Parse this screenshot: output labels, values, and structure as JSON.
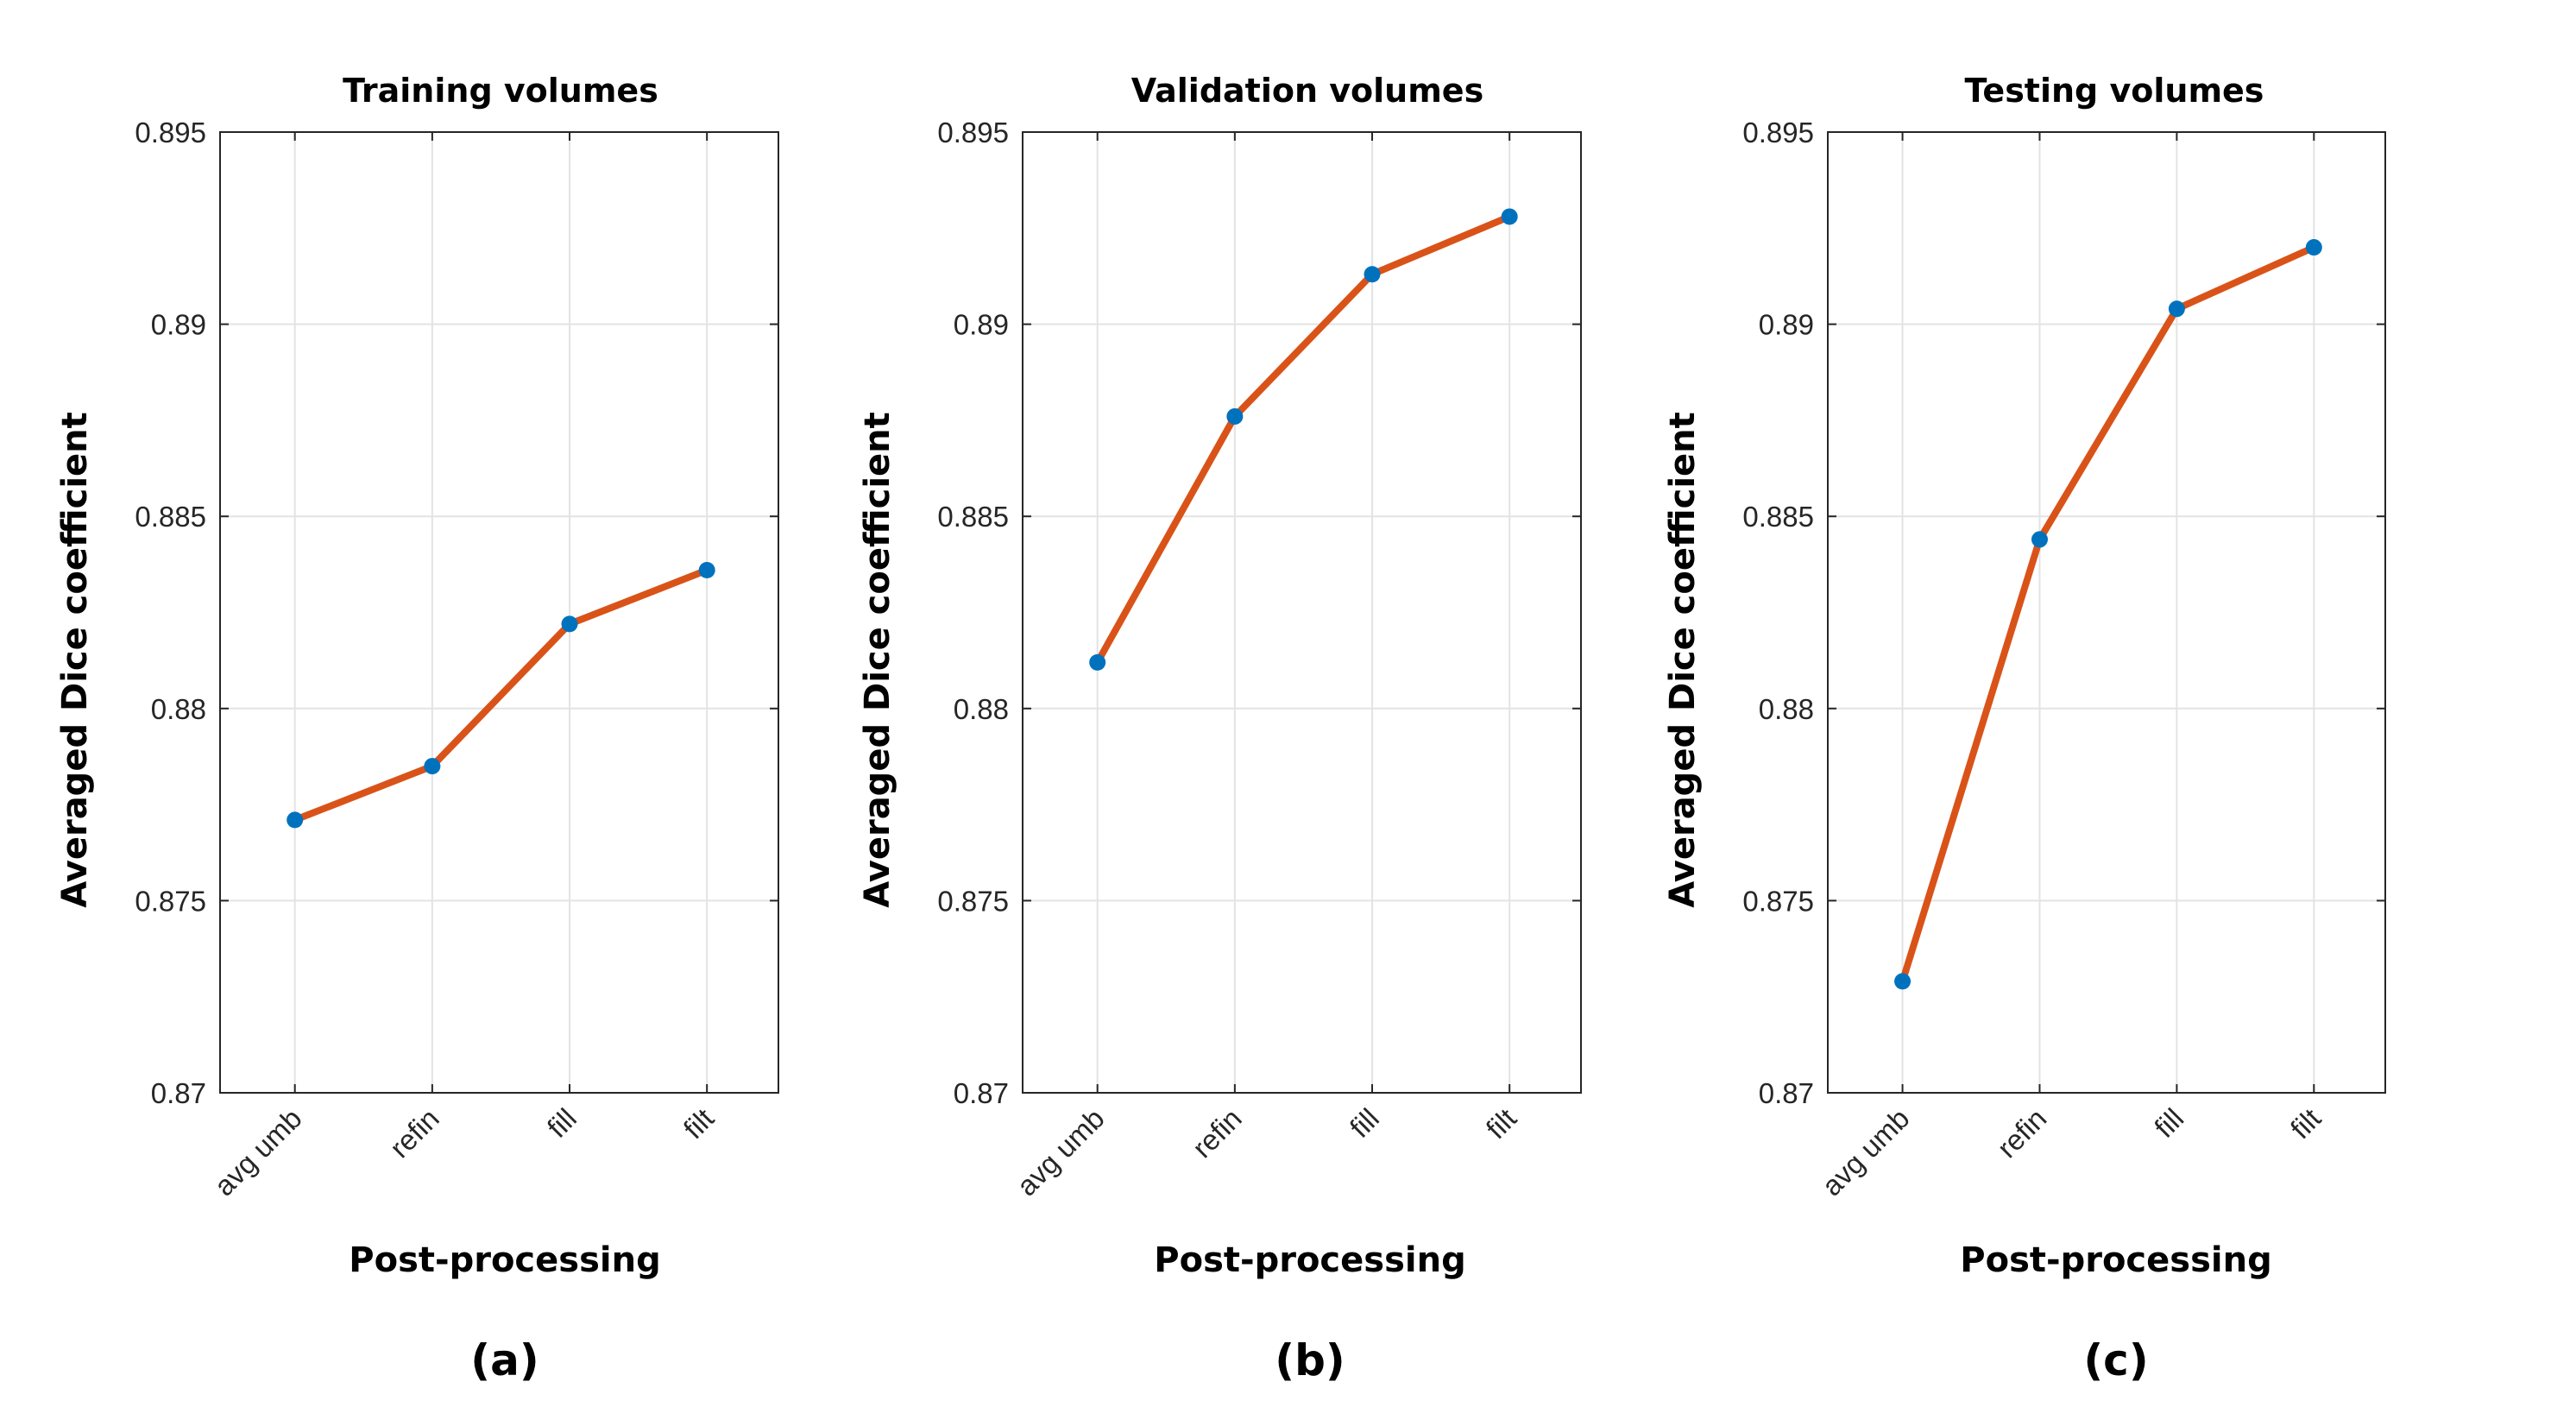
{
  "chart_data": [
    {
      "type": "line",
      "title": "Training volumes",
      "xlabel": "Post-processing",
      "ylabel": "Averaged Dice coefficient",
      "categories": [
        "avg umb",
        "refin",
        "fill",
        "filt"
      ],
      "values": [
        0.8771,
        0.8785,
        0.8822,
        0.8836
      ],
      "ylim": [
        0.87,
        0.895
      ],
      "yticks": [
        "0.87",
        "0.875",
        "0.88",
        "0.885",
        "0.89",
        "0.895"
      ],
      "grid": true,
      "caption": "(a)"
    },
    {
      "type": "line",
      "title": "Validation volumes",
      "xlabel": "Post-processing",
      "ylabel": "Averaged Dice coefficient",
      "categories": [
        "avg umb",
        "refin",
        "fill",
        "filt"
      ],
      "values": [
        0.8812,
        0.8876,
        0.8913,
        0.8928
      ],
      "ylim": [
        0.87,
        0.895
      ],
      "yticks": [
        "0.87",
        "0.875",
        "0.88",
        "0.885",
        "0.89",
        "0.895"
      ],
      "grid": true,
      "caption": "(b)"
    },
    {
      "type": "line",
      "title": "Testing volumes",
      "xlabel": "Post-processing",
      "ylabel": "Averaged Dice coefficient",
      "categories": [
        "avg umb",
        "refin",
        "fill",
        "filt"
      ],
      "values": [
        0.8729,
        0.8844,
        0.8904,
        0.892
      ],
      "ylim": [
        0.87,
        0.895
      ],
      "yticks": [
        "0.87",
        "0.875",
        "0.88",
        "0.885",
        "0.89",
        "0.895"
      ],
      "grid": true,
      "caption": "(c)"
    }
  ],
  "colors": {
    "line": "#d95319",
    "marker": "#0072bd",
    "grid": "#e3e3e3",
    "axis": "#262626"
  }
}
